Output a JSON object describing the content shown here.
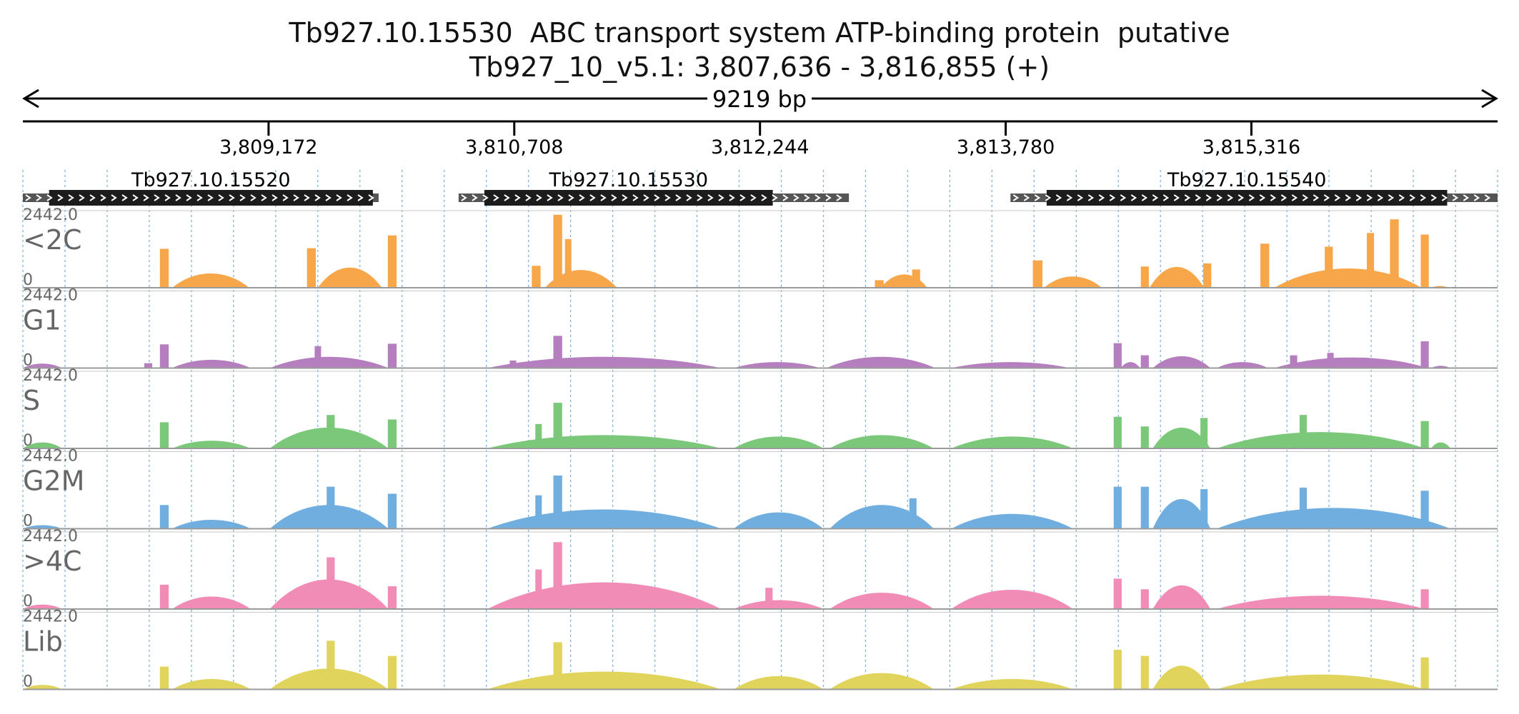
{
  "title": {
    "line1": "Tb927.10.15530  ABC transport system ATP-binding protein  putative",
    "line2": "Tb927_10_v5.1: 3,807,636 - 3,816,855 (+)"
  },
  "span_label": "9219 bp",
  "region": {
    "start": 3807636,
    "end": 3816855,
    "strand": "+"
  },
  "colors": {
    "axis": "#000000",
    "gridline": "#7fb0dc",
    "gene_cds": "#1c1c1c",
    "gene_utr": "#555555",
    "track_label": "#666666",
    "track_baseline": "#9a9a9a"
  },
  "chart_data": {
    "type": "area",
    "x_ticks": [
      3809172,
      3810708,
      3812244,
      3813780,
      3815316
    ],
    "x_tick_labels": [
      "3,809,172",
      "3,810,708",
      "3,812,244",
      "3,813,780",
      "3,815,316"
    ],
    "genes": [
      {
        "name": "Tb927.10.15520",
        "start": 3807636,
        "end": 3809860,
        "cds_start": 3807800,
        "cds_end": 3809824
      },
      {
        "name": "Tb927.10.15530",
        "start": 3810360,
        "end": 3812800,
        "cds_start": 3810521,
        "cds_end": 3812324
      },
      {
        "name": "Tb927.10.15540",
        "start": 3813810,
        "end": 3816855,
        "cds_start": 3814036,
        "cds_end": 3816540
      }
    ],
    "ylim": [
      0,
      2442.0
    ],
    "y_max_label": "2442.0",
    "y_min_label": "0",
    "series": [
      {
        "name": "<2C",
        "color": "#f7a64a",
        "features": [
          {
            "type": "spike",
            "pos": 3808520,
            "w": 55,
            "value": 1280
          },
          {
            "type": "hump",
            "start": 3808570,
            "end": 3809050,
            "value": 480
          },
          {
            "type": "spike",
            "pos": 3809440,
            "w": 55,
            "value": 1300
          },
          {
            "type": "hump",
            "start": 3809480,
            "end": 3809880,
            "value": 680
          },
          {
            "type": "spike",
            "pos": 3809945,
            "w": 55,
            "value": 1720
          },
          {
            "type": "spike",
            "pos": 3810845,
            "w": 55,
            "value": 720
          },
          {
            "type": "spike",
            "pos": 3810980,
            "w": 55,
            "value": 2400
          },
          {
            "type": "spike",
            "pos": 3811045,
            "w": 40,
            "value": 1600
          },
          {
            "type": "hump",
            "start": 3810900,
            "end": 3811350,
            "value": 600
          },
          {
            "type": "spike",
            "pos": 3812990,
            "w": 55,
            "value": 250
          },
          {
            "type": "hump",
            "start": 3813000,
            "end": 3813290,
            "value": 450
          },
          {
            "type": "spike",
            "pos": 3813220,
            "w": 50,
            "value": 600
          },
          {
            "type": "spike",
            "pos": 3813980,
            "w": 60,
            "value": 900
          },
          {
            "type": "hump",
            "start": 3814020,
            "end": 3814380,
            "value": 380
          },
          {
            "type": "spike",
            "pos": 3814650,
            "w": 50,
            "value": 700
          },
          {
            "type": "hump",
            "start": 3814680,
            "end": 3815020,
            "value": 700
          },
          {
            "type": "spike",
            "pos": 3815040,
            "w": 50,
            "value": 800
          },
          {
            "type": "spike",
            "pos": 3815400,
            "w": 55,
            "value": 1450
          },
          {
            "type": "hump",
            "start": 3815460,
            "end": 3816380,
            "value": 650
          },
          {
            "type": "spike",
            "pos": 3815800,
            "w": 50,
            "value": 1350
          },
          {
            "type": "spike",
            "pos": 3816060,
            "w": 45,
            "value": 1800
          },
          {
            "type": "spike",
            "pos": 3816210,
            "w": 55,
            "value": 2250
          },
          {
            "type": "spike",
            "pos": 3816400,
            "w": 50,
            "value": 1750
          },
          {
            "type": "hump",
            "start": 3816440,
            "end": 3816550,
            "value": 60
          }
        ]
      },
      {
        "name": "G1",
        "color": "#b57ebf",
        "features": [
          {
            "type": "hump",
            "start": 3807636,
            "end": 3807880,
            "value": 150
          },
          {
            "type": "spike",
            "pos": 3808420,
            "w": 50,
            "value": 160
          },
          {
            "type": "spike",
            "pos": 3808520,
            "w": 55,
            "value": 780
          },
          {
            "type": "hump",
            "start": 3808570,
            "end": 3809060,
            "value": 280
          },
          {
            "type": "hump",
            "start": 3809180,
            "end": 3809920,
            "value": 380
          },
          {
            "type": "spike",
            "pos": 3809480,
            "w": 40,
            "value": 720
          },
          {
            "type": "spike",
            "pos": 3809945,
            "w": 55,
            "value": 800
          },
          {
            "type": "hump",
            "start": 3810540,
            "end": 3812000,
            "value": 380
          },
          {
            "type": "spike",
            "pos": 3810980,
            "w": 55,
            "value": 1060
          },
          {
            "type": "spike",
            "pos": 3810700,
            "w": 40,
            "value": 250
          },
          {
            "type": "hump",
            "start": 3812080,
            "end": 3812620,
            "value": 200
          },
          {
            "type": "hump",
            "start": 3812660,
            "end": 3813340,
            "value": 380
          },
          {
            "type": "hump",
            "start": 3813440,
            "end": 3814180,
            "value": 200
          },
          {
            "type": "spike",
            "pos": 3814480,
            "w": 50,
            "value": 820
          },
          {
            "type": "hump",
            "start": 3814500,
            "end": 3814620,
            "value": 200
          },
          {
            "type": "spike",
            "pos": 3814650,
            "w": 50,
            "value": 420
          },
          {
            "type": "hump",
            "start": 3814700,
            "end": 3815060,
            "value": 400
          },
          {
            "type": "hump",
            "start": 3815100,
            "end": 3815420,
            "value": 200
          },
          {
            "type": "spike",
            "pos": 3815580,
            "w": 45,
            "value": 420
          },
          {
            "type": "spike",
            "pos": 3815810,
            "w": 40,
            "value": 500
          },
          {
            "type": "hump",
            "start": 3815460,
            "end": 3816420,
            "value": 360
          },
          {
            "type": "spike",
            "pos": 3816400,
            "w": 50,
            "value": 880
          },
          {
            "type": "hump",
            "start": 3816440,
            "end": 3816560,
            "value": 80
          }
        ]
      },
      {
        "name": "S",
        "color": "#7bc87b",
        "features": [
          {
            "type": "hump",
            "start": 3807636,
            "end": 3807880,
            "value": 200
          },
          {
            "type": "spike",
            "pos": 3808520,
            "w": 55,
            "value": 860
          },
          {
            "type": "hump",
            "start": 3808570,
            "end": 3809060,
            "value": 260
          },
          {
            "type": "hump",
            "start": 3809180,
            "end": 3809920,
            "value": 700
          },
          {
            "type": "spike",
            "pos": 3809560,
            "w": 50,
            "value": 1100
          },
          {
            "type": "spike",
            "pos": 3809945,
            "w": 55,
            "value": 950
          },
          {
            "type": "hump",
            "start": 3810540,
            "end": 3812000,
            "value": 450
          },
          {
            "type": "spike",
            "pos": 3810980,
            "w": 55,
            "value": 1500
          },
          {
            "type": "spike",
            "pos": 3810860,
            "w": 40,
            "value": 800
          },
          {
            "type": "hump",
            "start": 3812080,
            "end": 3812640,
            "value": 400
          },
          {
            "type": "hump",
            "start": 3812680,
            "end": 3813330,
            "value": 450
          },
          {
            "type": "hump",
            "start": 3813440,
            "end": 3814200,
            "value": 400
          },
          {
            "type": "spike",
            "pos": 3814480,
            "w": 50,
            "value": 1040
          },
          {
            "type": "spike",
            "pos": 3814650,
            "w": 50,
            "value": 720
          },
          {
            "type": "hump",
            "start": 3814700,
            "end": 3815060,
            "value": 700
          },
          {
            "type": "spike",
            "pos": 3815020,
            "w": 45,
            "value": 1000
          },
          {
            "type": "hump",
            "start": 3815100,
            "end": 3816400,
            "value": 550
          },
          {
            "type": "spike",
            "pos": 3815640,
            "w": 45,
            "value": 1100
          },
          {
            "type": "spike",
            "pos": 3816400,
            "w": 50,
            "value": 900
          },
          {
            "type": "hump",
            "start": 3816440,
            "end": 3816560,
            "value": 200
          }
        ]
      },
      {
        "name": "G2M",
        "color": "#6faedf",
        "features": [
          {
            "type": "hump",
            "start": 3807636,
            "end": 3807880,
            "value": 120
          },
          {
            "type": "spike",
            "pos": 3808520,
            "w": 55,
            "value": 780
          },
          {
            "type": "hump",
            "start": 3808570,
            "end": 3809060,
            "value": 300
          },
          {
            "type": "hump",
            "start": 3809180,
            "end": 3809920,
            "value": 800
          },
          {
            "type": "spike",
            "pos": 3809560,
            "w": 50,
            "value": 1380
          },
          {
            "type": "spike",
            "pos": 3809945,
            "w": 55,
            "value": 1150
          },
          {
            "type": "hump",
            "start": 3810540,
            "end": 3812000,
            "value": 650
          },
          {
            "type": "spike",
            "pos": 3810980,
            "w": 55,
            "value": 1750
          },
          {
            "type": "spike",
            "pos": 3810860,
            "w": 40,
            "value": 1100
          },
          {
            "type": "hump",
            "start": 3812080,
            "end": 3812640,
            "value": 550
          },
          {
            "type": "hump",
            "start": 3812680,
            "end": 3813330,
            "value": 800
          },
          {
            "type": "spike",
            "pos": 3813200,
            "w": 45,
            "value": 1000
          },
          {
            "type": "hump",
            "start": 3813440,
            "end": 3814200,
            "value": 500
          },
          {
            "type": "spike",
            "pos": 3814480,
            "w": 50,
            "value": 1380
          },
          {
            "type": "spike",
            "pos": 3814650,
            "w": 50,
            "value": 1380
          },
          {
            "type": "hump",
            "start": 3814700,
            "end": 3815060,
            "value": 1000
          },
          {
            "type": "spike",
            "pos": 3815020,
            "w": 45,
            "value": 1300
          },
          {
            "type": "hump",
            "start": 3815100,
            "end": 3816560,
            "value": 700
          },
          {
            "type": "spike",
            "pos": 3815640,
            "w": 45,
            "value": 1350
          },
          {
            "type": "spike",
            "pos": 3816400,
            "w": 50,
            "value": 1250
          }
        ]
      },
      {
        "name": ">4C",
        "color": "#f08cb6",
        "features": [
          {
            "type": "hump",
            "start": 3807636,
            "end": 3807880,
            "value": 150
          },
          {
            "type": "spike",
            "pos": 3808520,
            "w": 55,
            "value": 800
          },
          {
            "type": "hump",
            "start": 3808570,
            "end": 3809060,
            "value": 420
          },
          {
            "type": "hump",
            "start": 3809180,
            "end": 3809920,
            "value": 1000
          },
          {
            "type": "spike",
            "pos": 3809560,
            "w": 50,
            "value": 1700
          },
          {
            "type": "spike",
            "pos": 3809945,
            "w": 55,
            "value": 750
          },
          {
            "type": "hump",
            "start": 3810540,
            "end": 3812000,
            "value": 900
          },
          {
            "type": "spike",
            "pos": 3810980,
            "w": 55,
            "value": 2200
          },
          {
            "type": "spike",
            "pos": 3810860,
            "w": 40,
            "value": 1300
          },
          {
            "type": "hump",
            "start": 3812080,
            "end": 3812640,
            "value": 300
          },
          {
            "type": "spike",
            "pos": 3812300,
            "w": 45,
            "value": 700
          },
          {
            "type": "hump",
            "start": 3812680,
            "end": 3813330,
            "value": 550
          },
          {
            "type": "hump",
            "start": 3813440,
            "end": 3814200,
            "value": 650
          },
          {
            "type": "spike",
            "pos": 3814480,
            "w": 50,
            "value": 1000
          },
          {
            "type": "spike",
            "pos": 3814650,
            "w": 50,
            "value": 650
          },
          {
            "type": "hump",
            "start": 3814700,
            "end": 3815060,
            "value": 800
          },
          {
            "type": "hump",
            "start": 3815100,
            "end": 3816400,
            "value": 450
          },
          {
            "type": "spike",
            "pos": 3816400,
            "w": 50,
            "value": 650
          }
        ]
      },
      {
        "name": "Lib",
        "color": "#e0d45c",
        "features": [
          {
            "type": "hump",
            "start": 3807636,
            "end": 3807880,
            "value": 150
          },
          {
            "type": "spike",
            "pos": 3808520,
            "w": 55,
            "value": 750
          },
          {
            "type": "hump",
            "start": 3808570,
            "end": 3809060,
            "value": 350
          },
          {
            "type": "hump",
            "start": 3809180,
            "end": 3809920,
            "value": 700
          },
          {
            "type": "spike",
            "pos": 3809560,
            "w": 50,
            "value": 1600
          },
          {
            "type": "spike",
            "pos": 3809945,
            "w": 55,
            "value": 1100
          },
          {
            "type": "hump",
            "start": 3810540,
            "end": 3812000,
            "value": 600
          },
          {
            "type": "spike",
            "pos": 3810980,
            "w": 55,
            "value": 1550
          },
          {
            "type": "hump",
            "start": 3812080,
            "end": 3812640,
            "value": 450
          },
          {
            "type": "hump",
            "start": 3812680,
            "end": 3813330,
            "value": 550
          },
          {
            "type": "hump",
            "start": 3813440,
            "end": 3814200,
            "value": 350
          },
          {
            "type": "spike",
            "pos": 3814480,
            "w": 50,
            "value": 1300
          },
          {
            "type": "spike",
            "pos": 3814650,
            "w": 50,
            "value": 1100
          },
          {
            "type": "hump",
            "start": 3814700,
            "end": 3815060,
            "value": 800
          },
          {
            "type": "hump",
            "start": 3815100,
            "end": 3816400,
            "value": 500
          },
          {
            "type": "spike",
            "pos": 3816400,
            "w": 50,
            "value": 1050
          }
        ]
      }
    ]
  }
}
